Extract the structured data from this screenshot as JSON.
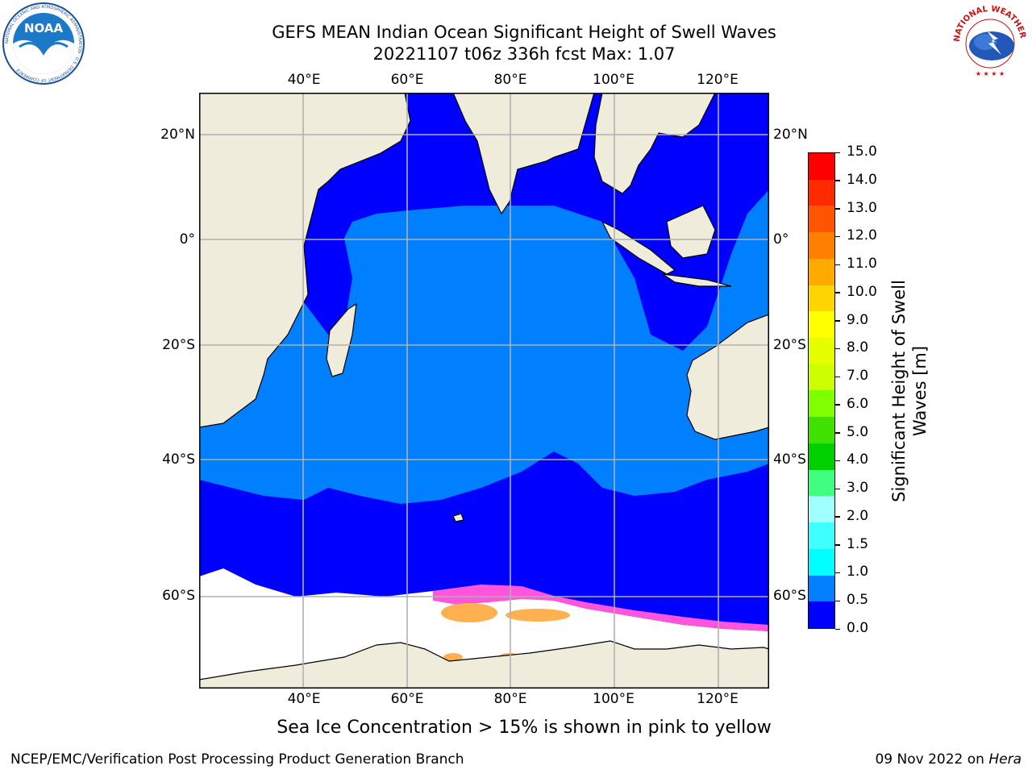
{
  "header": {
    "title_line1": "GEFS MEAN Indian Ocean Significant Height of Swell Waves",
    "title_line2": "20221107 t06z 336h fcst   Max: 1.07"
  },
  "logos": {
    "left": "NOAA",
    "left_ring_text": "NATIONAL OCEANIC AND ATMOSPHERIC ADMINISTRATION · U.S. DEPARTMENT OF COMMERCE",
    "right_ring_text": "NATIONAL WEATHER SERVICE"
  },
  "map": {
    "lon_labels": [
      "40°E",
      "60°E",
      "80°E",
      "100°E",
      "120°E"
    ],
    "lat_labels": [
      "20°N",
      "0°",
      "20°S",
      "40°S",
      "60°S"
    ],
    "colors": {
      "land": "#efecdc",
      "ocean_low": "#0000ff",
      "ocean_mid": "#0080ff",
      "ice_white": "#ffffff",
      "ice_pink": "#ff55dd",
      "ice_orange": "#ffb050",
      "grid": "#b0b0b0"
    }
  },
  "colorbar": {
    "label_line1": "Significant Height of Swell",
    "label_line2": "Waves [m]",
    "ticks": [
      "15.0",
      "14.0",
      "13.0",
      "12.0",
      "11.0",
      "10.0",
      "9.0",
      "8.0",
      "7.0",
      "6.0",
      "5.0",
      "4.0",
      "3.0",
      "2.0",
      "1.5",
      "1.0",
      "0.5",
      "0.0"
    ],
    "colors": [
      "#ff0000",
      "#ff2a00",
      "#ff5500",
      "#ff8000",
      "#ffaa00",
      "#ffd500",
      "#ffff00",
      "#e6ff00",
      "#ccff00",
      "#80ff00",
      "#40e000",
      "#00d000",
      "#40ff80",
      "#a0ffff",
      "#40ffff",
      "#00ffff",
      "#0080ff",
      "#0000ff"
    ]
  },
  "caption": "Sea Ice Concentration > 15% is shown in pink to yellow",
  "footer": {
    "left": "NCEP/EMC/Verification Post Processing Product Generation Branch",
    "right_prefix": "09 Nov 2022 on ",
    "right_italic": "Hera"
  }
}
